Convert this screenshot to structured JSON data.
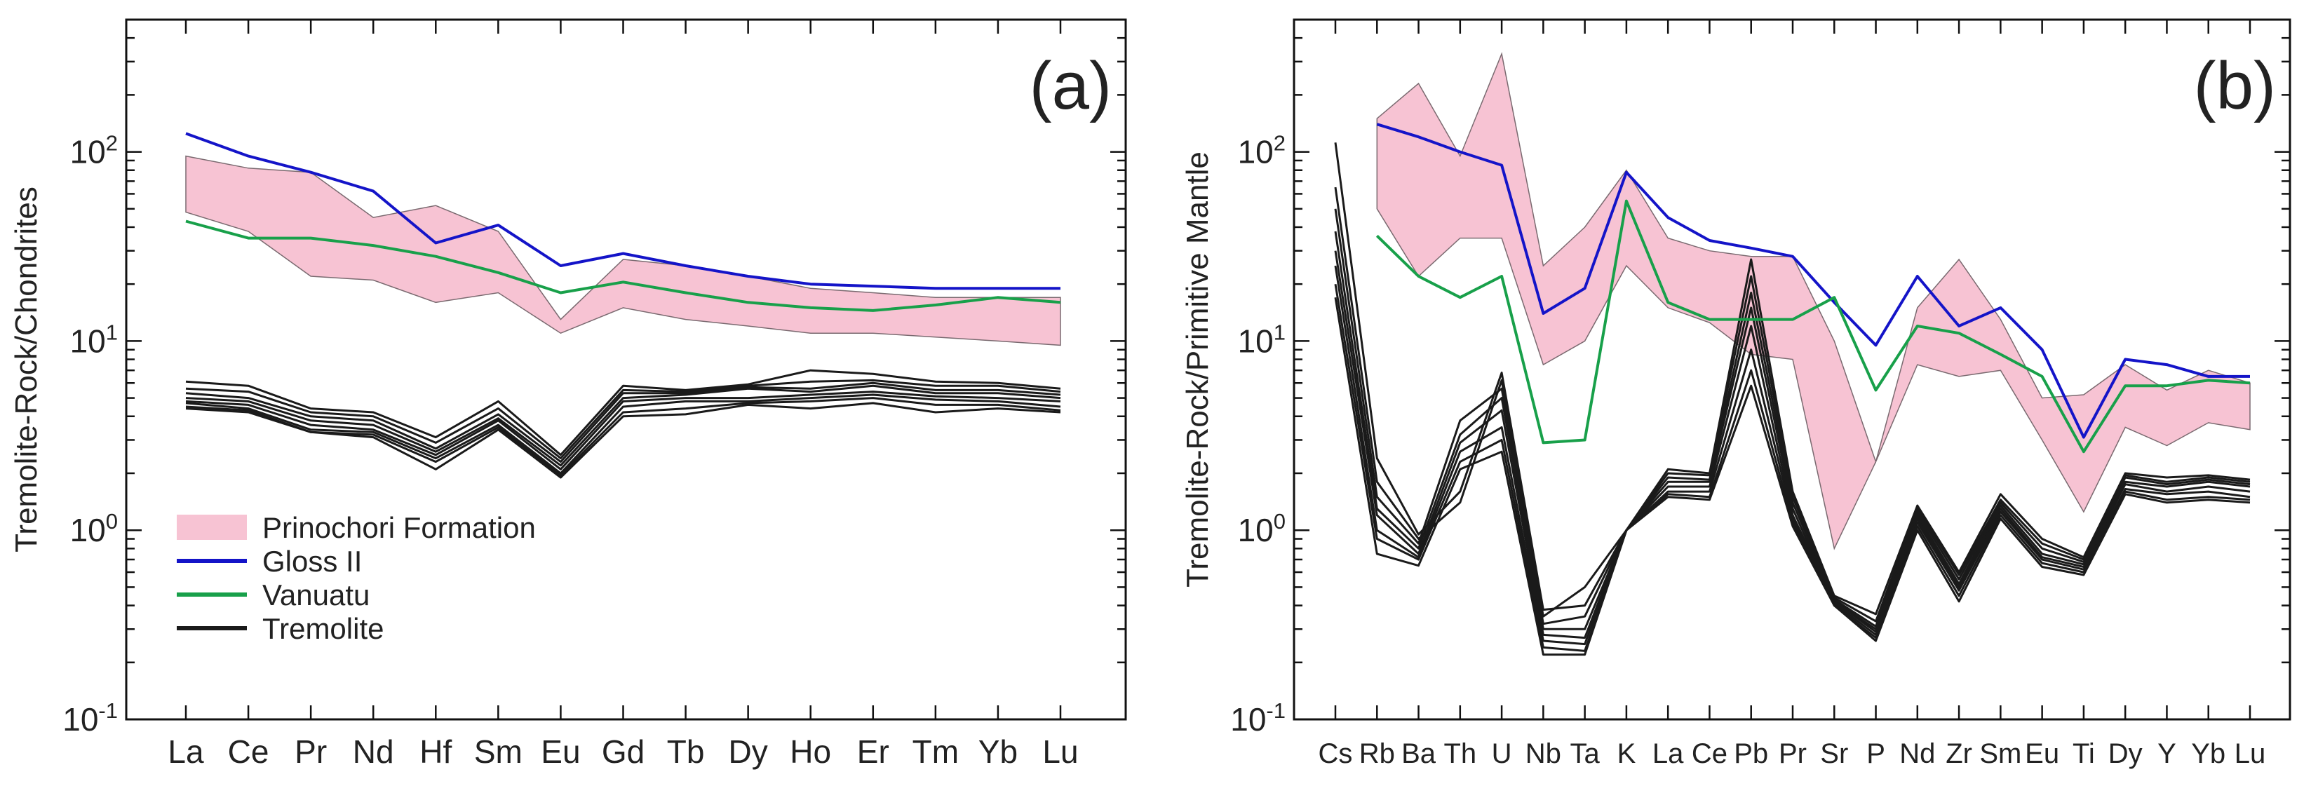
{
  "chart_data": [
    {
      "type": "line",
      "panel_label": "(a)",
      "ylabel": "Tremolite-Rock/Chondrites",
      "xlabel": "",
      "yscale": "log",
      "ylim": [
        0.1,
        500
      ],
      "yticks": [
        {
          "base": "10",
          "exp": "-1"
        },
        {
          "base": "10",
          "exp": "0"
        },
        {
          "base": "10",
          "exp": "1"
        },
        {
          "base": "10",
          "exp": "2"
        }
      ],
      "categories": [
        "La",
        "Ce",
        "Pr",
        "Nd",
        "Hf",
        "Sm",
        "Eu",
        "Gd",
        "Tb",
        "Dy",
        "Ho",
        "Er",
        "Tm",
        "Yb",
        "Lu"
      ],
      "legend_position": "lower-left",
      "legend": [
        {
          "label": "Prinochori Formation",
          "kind": "band",
          "color": "#f7c3d3"
        },
        {
          "label": "Gloss II",
          "kind": "line",
          "color": "#1414c8"
        },
        {
          "label": "Vanuatu",
          "kind": "line",
          "color": "#18a04a"
        },
        {
          "label": "Tremolite",
          "kind": "line",
          "color": "#1a1a1a"
        }
      ],
      "band": {
        "name": "Prinochori Formation",
        "color": "#f7c3d3",
        "upper": [
          95,
          82,
          78,
          45,
          52,
          38,
          13,
          27,
          25,
          22,
          19,
          18,
          17,
          17,
          17
        ],
        "lower": [
          48,
          38,
          22,
          21,
          16,
          18,
          11,
          15,
          13,
          12,
          11,
          11,
          10.5,
          10,
          9.5
        ]
      },
      "series": [
        {
          "name": "Gloss II",
          "color": "#1414c8",
          "values": [
            125,
            95,
            78,
            62,
            33,
            41,
            25,
            29,
            25,
            22,
            20,
            19.5,
            19,
            19,
            19
          ]
        },
        {
          "name": "Vanuatu",
          "color": "#18a04a",
          "values": [
            43,
            35,
            35,
            32,
            28,
            23,
            18,
            20.5,
            18,
            16,
            15,
            14.5,
            15.5,
            17,
            16
          ]
        },
        {
          "name": "Tremolite",
          "color": "#1a1a1a",
          "values": [
            6.1,
            5.8,
            4.4,
            4.2,
            3.1,
            4.8,
            2.5,
            5.8,
            5.5,
            5.9,
            7.0,
            6.7,
            6.1,
            6.0,
            5.6
          ]
        },
        {
          "name": "Tremolite",
          "color": "#1a1a1a",
          "values": [
            5.6,
            5.4,
            4.2,
            4.0,
            2.9,
            4.4,
            2.4,
            5.5,
            5.4,
            5.8,
            6.1,
            6.2,
            5.8,
            5.8,
            5.4
          ]
        },
        {
          "name": "Tremolite",
          "color": "#1a1a1a",
          "values": [
            5.3,
            5.0,
            4.0,
            3.8,
            2.7,
            4.1,
            2.3,
            5.3,
            5.3,
            5.7,
            5.6,
            6.0,
            5.5,
            5.5,
            5.2
          ]
        },
        {
          "name": "Tremolite",
          "color": "#1a1a1a",
          "values": [
            5.0,
            4.8,
            3.8,
            3.6,
            2.6,
            3.9,
            2.2,
            5.0,
            5.2,
            5.6,
            5.4,
            5.8,
            5.3,
            5.3,
            5.0
          ]
        },
        {
          "name": "Tremolite",
          "color": "#1a1a1a",
          "values": [
            4.8,
            4.6,
            3.6,
            3.4,
            2.5,
            3.8,
            2.1,
            4.8,
            5.0,
            5.0,
            5.2,
            5.4,
            5.1,
            5.0,
            4.8
          ]
        },
        {
          "name": "Tremolite",
          "color": "#1a1a1a",
          "values": [
            4.7,
            4.4,
            3.4,
            3.3,
            2.4,
            3.6,
            2.0,
            4.5,
            4.8,
            4.8,
            5.0,
            5.2,
            4.9,
            4.8,
            4.5
          ]
        },
        {
          "name": "Tremolite",
          "color": "#1a1a1a",
          "values": [
            4.5,
            4.3,
            3.3,
            3.2,
            2.3,
            3.5,
            1.95,
            4.2,
            4.4,
            4.7,
            4.8,
            5.0,
            4.6,
            4.6,
            4.3
          ]
        },
        {
          "name": "Tremolite",
          "color": "#1a1a1a",
          "values": [
            4.4,
            4.2,
            3.3,
            3.1,
            2.1,
            3.4,
            1.9,
            4.0,
            4.1,
            4.6,
            4.4,
            4.7,
            4.2,
            4.4,
            4.2
          ]
        }
      ]
    },
    {
      "type": "line",
      "panel_label": "(b)",
      "ylabel": "Tremolite-Rock/Primitive Mantle",
      "xlabel": "",
      "yscale": "log",
      "ylim": [
        0.1,
        500
      ],
      "yticks": [
        {
          "base": "10",
          "exp": "-1"
        },
        {
          "base": "10",
          "exp": "0"
        },
        {
          "base": "10",
          "exp": "1"
        },
        {
          "base": "10",
          "exp": "2"
        }
      ],
      "categories": [
        "Cs",
        "Rb",
        "Ba",
        "Th",
        "U",
        "Nb",
        "Ta",
        "K",
        "La",
        "Ce",
        "Pb",
        "Pr",
        "Sr",
        "P",
        "Nd",
        "Zr",
        "Sm",
        "Eu",
        "Ti",
        "Dy",
        "Y",
        "Yb",
        "Lu"
      ],
      "band": {
        "name": "Prinochori Formation",
        "color": "#f7c3d3",
        "band_start_index": 1,
        "upper": [
          null,
          150,
          230,
          95,
          330,
          25,
          40,
          80,
          35,
          30,
          28,
          28,
          10,
          2.3,
          15,
          27,
          13,
          5,
          5.2,
          7.5,
          5.5,
          7,
          6
        ],
        "lower": [
          null,
          50,
          22,
          35,
          35,
          7.5,
          10,
          25,
          15,
          12.5,
          8.5,
          8,
          0.8,
          2.3,
          7.5,
          6.5,
          7,
          3,
          1.25,
          3.5,
          2.8,
          3.7,
          3.4
        ]
      },
      "series": [
        {
          "name": "Gloss II",
          "color": "#1414c8",
          "values": [
            null,
            140,
            120,
            100,
            85,
            14,
            19,
            78,
            45,
            34,
            31,
            28,
            16,
            9.5,
            22,
            12,
            15,
            9,
            3.1,
            8,
            7.5,
            6.5,
            6.5
          ]
        },
        {
          "name": "Vanuatu",
          "color": "#18a04a",
          "values": [
            null,
            36,
            22,
            17,
            22,
            2.9,
            3.0,
            55,
            16,
            13,
            13,
            13,
            17,
            5.5,
            12,
            11,
            8.5,
            6.5,
            2.6,
            5.8,
            5.8,
            6.2,
            6.0
          ]
        },
        {
          "name": "Tremolite",
          "color": "#1a1a1a",
          "values": [
            112,
            2.4,
            0.95,
            1.6,
            6.8,
            0.38,
            0.4,
            1.0,
            2.1,
            2.0,
            27,
            1.6,
            0.45,
            0.36,
            1.35,
            0.6,
            1.55,
            0.9,
            0.72,
            2.0,
            1.9,
            1.95,
            1.85
          ]
        },
        {
          "name": "Tremolite",
          "color": "#1a1a1a",
          "values": [
            65,
            1.8,
            0.9,
            1.4,
            6.2,
            0.35,
            0.5,
            1.0,
            2.0,
            1.95,
            22,
            1.5,
            0.44,
            0.33,
            1.3,
            0.58,
            1.45,
            0.85,
            0.7,
            1.95,
            1.8,
            1.9,
            1.8
          ]
        },
        {
          "name": "Tremolite",
          "color": "#1a1a1a",
          "values": [
            50,
            1.5,
            0.85,
            3.8,
            5.6,
            0.32,
            0.35,
            1.0,
            1.9,
            1.85,
            18,
            1.4,
            0.43,
            0.31,
            1.25,
            0.55,
            1.4,
            0.8,
            0.68,
            1.9,
            1.75,
            1.85,
            1.75
          ]
        },
        {
          "name": "Tremolite",
          "color": "#1a1a1a",
          "values": [
            38,
            1.3,
            0.8,
            3.2,
            5.0,
            0.3,
            0.3,
            1.0,
            1.8,
            1.8,
            15,
            1.3,
            0.42,
            0.3,
            1.2,
            0.52,
            1.35,
            0.75,
            0.66,
            1.8,
            1.7,
            1.8,
            1.7
          ]
        },
        {
          "name": "Tremolite",
          "color": "#1a1a1a",
          "values": [
            30,
            1.2,
            0.75,
            2.9,
            4.3,
            0.28,
            0.27,
            1.0,
            1.7,
            1.7,
            12,
            1.2,
            0.42,
            0.29,
            1.15,
            0.5,
            1.3,
            0.72,
            0.64,
            1.75,
            1.6,
            1.7,
            1.6
          ]
        },
        {
          "name": "Tremolite",
          "color": "#1a1a1a",
          "values": [
            25,
            1.0,
            0.72,
            2.6,
            3.5,
            0.26,
            0.25,
            1.0,
            1.6,
            1.6,
            9,
            1.15,
            0.41,
            0.28,
            1.1,
            0.48,
            1.25,
            0.7,
            0.62,
            1.65,
            1.55,
            1.6,
            1.5
          ]
        },
        {
          "name": "Tremolite",
          "color": "#1a1a1a",
          "values": [
            20,
            0.9,
            0.7,
            2.3,
            3.0,
            0.24,
            0.23,
            1.0,
            1.55,
            1.5,
            7,
            1.1,
            0.4,
            0.27,
            1.05,
            0.45,
            1.2,
            0.67,
            0.6,
            1.6,
            1.45,
            1.5,
            1.45
          ]
        },
        {
          "name": "Tremolite",
          "color": "#1a1a1a",
          "values": [
            17,
            0.75,
            0.65,
            2.1,
            2.6,
            0.22,
            0.22,
            1.0,
            1.5,
            1.45,
            5.8,
            1.05,
            0.4,
            0.26,
            1.0,
            0.42,
            1.15,
            0.64,
            0.58,
            1.55,
            1.4,
            1.45,
            1.4
          ]
        }
      ]
    }
  ]
}
